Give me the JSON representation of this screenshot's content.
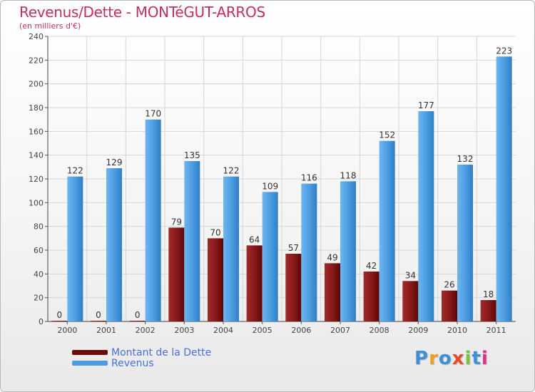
{
  "header": {
    "title": "Revenus/Dette - MONTéGUT-ARROS",
    "subtitle": "(en milliers d'€)"
  },
  "chart_data": {
    "type": "bar",
    "title": "Revenus/Dette - MONTéGUT-ARROS",
    "ylabel": "(en milliers d'€)",
    "xlabel": "",
    "categories": [
      "2000",
      "2001",
      "2002",
      "2003",
      "2004",
      "2005",
      "2006",
      "2007",
      "2008",
      "2009",
      "2010",
      "2011"
    ],
    "series": [
      {
        "name": "Montant de la Dette",
        "color": "#8a1a1a",
        "values": [
          0,
          0,
          0,
          79,
          70,
          64,
          57,
          49,
          42,
          34,
          26,
          18
        ]
      },
      {
        "name": "Revenus",
        "color": "#4a9be0",
        "values": [
          122,
          129,
          170,
          135,
          122,
          109,
          116,
          118,
          152,
          177,
          132,
          223
        ]
      }
    ],
    "ylim": [
      0,
      240
    ],
    "yticks": [
      0,
      20,
      40,
      60,
      80,
      100,
      120,
      140,
      160,
      180,
      200,
      220,
      240
    ],
    "grid": true,
    "legend_position": "bottom-left"
  },
  "legend": {
    "items": [
      {
        "label": "Montant de la Dette",
        "color": "#6b0a0a"
      },
      {
        "label": "Revenus",
        "color": "#4a9be0"
      }
    ]
  },
  "logo": {
    "text": "Proxiti",
    "letter_colors": [
      "#3d8fd6",
      "#f0a020",
      "#3d8fd6",
      "#e64b2a",
      "#7cc242",
      "#3d8fd6",
      "#e0308a"
    ]
  }
}
